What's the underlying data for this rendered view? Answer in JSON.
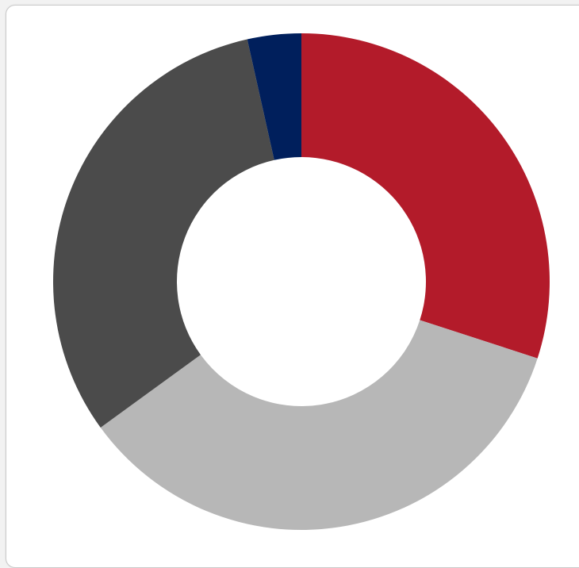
{
  "chart_data": {
    "type": "pie",
    "variant": "donut",
    "title": "",
    "legend": "none",
    "series": [
      {
        "value": 30.0,
        "color": "#b31b2a"
      },
      {
        "value": 35.0,
        "color": "#b7b7b7"
      },
      {
        "value": 31.5,
        "color": "#4b4b4b"
      },
      {
        "value": 3.5,
        "color": "#001f5c"
      }
    ]
  }
}
